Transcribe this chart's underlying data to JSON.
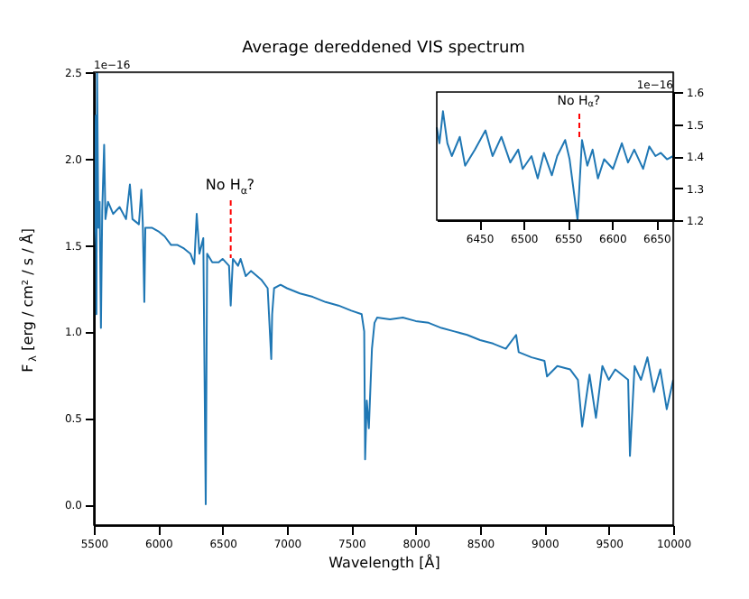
{
  "chart_data": [
    {
      "type": "line",
      "title": "Average dereddened VIS spectrum",
      "xlabel": "Wavelength [Å]",
      "ylabel": "F$_{λ}$ [erg / cm² / s / Å]",
      "series": [
        {
          "color": "#1f77b4",
          "x": [
            5500,
            5505,
            5515,
            5520,
            5525,
            5535,
            5545,
            5555,
            5565,
            5580,
            5590,
            5610,
            5650,
            5700,
            5750,
            5780,
            5800,
            5850,
            5869,
            5880,
            5892,
            5900,
            5950,
            6000,
            6050,
            6100,
            6150,
            6200,
            6250,
            6280,
            6299,
            6320,
            6350,
            6369,
            6380,
            6420,
            6470,
            6500,
            6550,
            6563,
            6580,
            6620,
            6640,
            6680,
            6720,
            6800,
            6850,
            6878,
            6885,
            6900,
            6950,
            7000,
            7100,
            7200,
            7300,
            7400,
            7500,
            7580,
            7600,
            7607,
            7620,
            7636,
            7660,
            7680,
            7700,
            7800,
            7900,
            8000,
            8100,
            8200,
            8300,
            8400,
            8500,
            8600,
            8700,
            8780,
            8800,
            8900,
            9000,
            9020,
            9100,
            9200,
            9260,
            9293,
            9350,
            9400,
            9450,
            9500,
            9550,
            9600,
            9650,
            9664,
            9700,
            9750,
            9800,
            9850,
            9900,
            9950,
            10000
          ],
          "values": [
            1.5,
            1.6,
            2.25,
            1.1,
            2.5,
            1.6,
            1.75,
            1.02,
            1.7,
            2.08,
            1.65,
            1.75,
            1.68,
            1.72,
            1.65,
            1.85,
            1.65,
            1.62,
            1.82,
            1.63,
            1.17,
            1.6,
            1.6,
            1.58,
            1.55,
            1.5,
            1.5,
            1.48,
            1.45,
            1.39,
            1.68,
            1.45,
            1.54,
            0.0,
            1.45,
            1.4,
            1.4,
            1.42,
            1.38,
            1.15,
            1.42,
            1.38,
            1.42,
            1.32,
            1.35,
            1.3,
            1.25,
            0.84,
            1.1,
            1.25,
            1.27,
            1.25,
            1.22,
            1.2,
            1.17,
            1.15,
            1.12,
            1.1,
            1.0,
            0.26,
            0.6,
            0.44,
            0.9,
            1.05,
            1.08,
            1.07,
            1.08,
            1.06,
            1.05,
            1.02,
            1.0,
            0.98,
            0.95,
            0.93,
            0.9,
            0.98,
            0.88,
            0.85,
            0.83,
            0.74,
            0.8,
            0.78,
            0.72,
            0.45,
            0.75,
            0.5,
            0.8,
            0.72,
            0.78,
            0.75,
            0.72,
            0.28,
            0.8,
            0.72,
            0.85,
            0.65,
            0.78,
            0.55,
            0.72
          ]
        }
      ],
      "xlim": [
        5500,
        10000
      ],
      "ylim": [
        -0.12,
        2.5
      ],
      "xticks": [
        5500,
        6000,
        6500,
        7000,
        7500,
        8000,
        8500,
        9000,
        9500,
        10000
      ],
      "yticks": [
        {
          "value": 0,
          "label": "0.0"
        },
        {
          "value": 0.5,
          "label": "0.5"
        },
        {
          "value": 1,
          "label": "1.0"
        },
        {
          "value": 1.5,
          "label": "1.5"
        },
        {
          "value": 2,
          "label": "2.0"
        },
        {
          "value": 2.5,
          "label": "2.5"
        }
      ],
      "ref_lines": [
        {
          "axis": "x",
          "value": 6563,
          "color": "#ff0000",
          "line_style": "dashed"
        }
      ],
      "annotations": [
        {
          "text": "No H$_{α}$?",
          "x": 6563,
          "y": 1.8
        },
        "1e−16"
      ],
      "grid": false
    },
    {
      "type": "line",
      "series": [
        {
          "color": "#1f77b4",
          "x": [
            6402,
            6405,
            6409,
            6414,
            6419,
            6428,
            6434,
            6445,
            6457,
            6465,
            6475,
            6485,
            6494,
            6499,
            6509,
            6516,
            6523,
            6532,
            6538,
            6547,
            6552,
            6561,
            6566,
            6572,
            6578,
            6584,
            6591,
            6601,
            6611,
            6618,
            6625,
            6635,
            6642,
            6649,
            6655,
            6662,
            6669
          ],
          "values": [
            1.49,
            1.44,
            1.54,
            1.44,
            1.4,
            1.46,
            1.37,
            1.42,
            1.48,
            1.4,
            1.46,
            1.38,
            1.42,
            1.36,
            1.4,
            1.33,
            1.41,
            1.34,
            1.4,
            1.45,
            1.39,
            1.2,
            1.45,
            1.37,
            1.42,
            1.33,
            1.39,
            1.36,
            1.44,
            1.38,
            1.42,
            1.36,
            1.43,
            1.4,
            1.41,
            1.39,
            1.4
          ]
        }
      ],
      "xlim": [
        6402,
        6669
      ],
      "ylim": [
        1.2,
        1.6
      ],
      "xticks": [
        6450,
        6500,
        6550,
        6600,
        6650
      ],
      "yticks": [
        1.2,
        1.3,
        1.4,
        1.5,
        1.6
      ],
      "ref_lines": [
        {
          "axis": "x",
          "value": 6563,
          "color": "#ff0000",
          "line_style": "dashed"
        }
      ],
      "annotations": [
        {
          "text": "No H$_{α}$?",
          "x": 6563,
          "y": 1.555
        },
        "1e−16"
      ],
      "grid": false
    }
  ]
}
